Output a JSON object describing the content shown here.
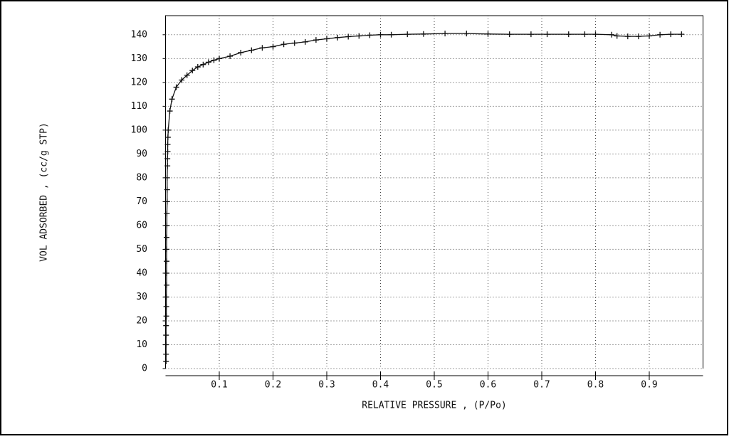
{
  "chart_data": {
    "type": "line",
    "marker": "+",
    "color": "#111111",
    "grid": true,
    "xlabel": "RELATIVE PRESSURE , (P/Po)",
    "ylabel": "VOL ADSORBED , (cc/g STP)",
    "xlim": [
      0,
      1
    ],
    "ylim": [
      0,
      148
    ],
    "xticks": [
      0.1,
      0.2,
      0.3,
      0.4,
      0.5,
      0.6,
      0.7,
      0.8,
      0.9
    ],
    "yticks": [
      0,
      10,
      20,
      30,
      40,
      50,
      60,
      70,
      80,
      90,
      100,
      110,
      120,
      130,
      140
    ],
    "x": [
      0.001,
      0.001,
      0.001,
      0.001,
      0.001,
      0.0015,
      0.0015,
      0.0015,
      0.002,
      0.002,
      0.002,
      0.002,
      0.002,
      0.0025,
      0.0025,
      0.003,
      0.003,
      0.003,
      0.0035,
      0.0035,
      0.004,
      0.004,
      0.0045,
      0.005,
      0.008,
      0.012,
      0.02,
      0.03,
      0.04,
      0.05,
      0.06,
      0.07,
      0.08,
      0.09,
      0.1,
      0.12,
      0.14,
      0.16,
      0.18,
      0.2,
      0.22,
      0.24,
      0.26,
      0.28,
      0.3,
      0.32,
      0.34,
      0.36,
      0.38,
      0.4,
      0.42,
      0.45,
      0.48,
      0.52,
      0.56,
      0.6,
      0.64,
      0.68,
      0.71,
      0.75,
      0.78,
      0.8,
      0.83,
      0.84,
      0.86,
      0.88,
      0.9,
      0.92,
      0.94,
      0.96
    ],
    "values": [
      3,
      6,
      10,
      14,
      18,
      22,
      26,
      30,
      35,
      40,
      45,
      50,
      55,
      60,
      65,
      70,
      75,
      80,
      85,
      88,
      91,
      94,
      97,
      100,
      108,
      113,
      118,
      121,
      123,
      125,
      126.5,
      127.5,
      128.5,
      129.3,
      130,
      131,
      132.5,
      133.5,
      134.5,
      135,
      136,
      136.5,
      137,
      137.8,
      138.3,
      138.8,
      139.2,
      139.5,
      139.8,
      140,
      140,
      140.2,
      140.3,
      140.5,
      140.5,
      140.3,
      140.2,
      140.2,
      140.2,
      140.2,
      140.2,
      140.2,
      140,
      139.5,
      139.3,
      139.3,
      139.5,
      140,
      140.2,
      140.2
    ]
  }
}
